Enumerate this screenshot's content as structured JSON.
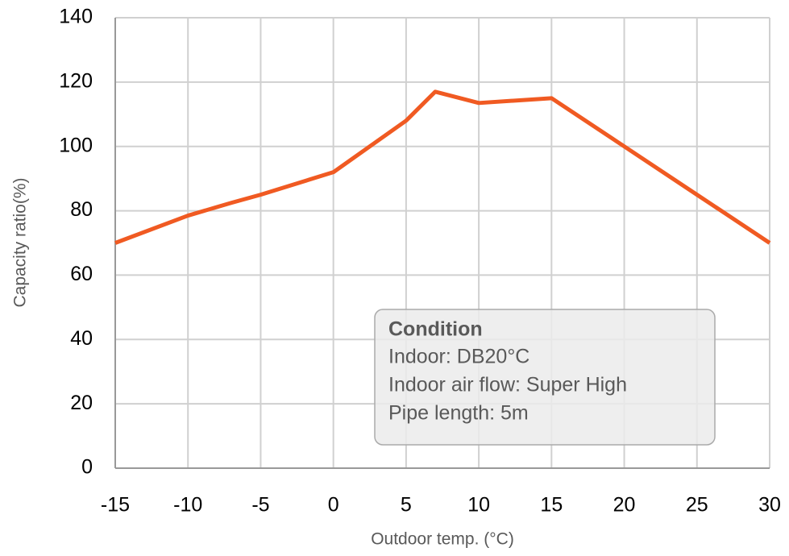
{
  "chart_data": {
    "type": "line",
    "xlabel": "Outdoor temp. (°C)",
    "ylabel": "Capacity ratio(%)",
    "x": [
      -15,
      -10,
      -7,
      -5,
      0,
      5,
      7,
      10,
      15,
      20,
      25,
      30
    ],
    "series": [
      {
        "name": "Capacity ratio",
        "color": "#f05a22",
        "values": [
          70,
          78.5,
          82.5,
          85,
          92,
          108,
          117,
          113.5,
          115,
          100,
          85,
          70
        ]
      }
    ],
    "xlim": [
      -15,
      30
    ],
    "xticks": [
      -15,
      -10,
      -5,
      0,
      5,
      10,
      15,
      20,
      25,
      30
    ],
    "ylim": [
      0,
      140
    ],
    "yticks": [
      0,
      20,
      40,
      60,
      80,
      100,
      120,
      140
    ],
    "grid": true,
    "annotation": {
      "title": "Condition",
      "lines": [
        "Indoor: DB20°C",
        "Indoor air flow: Super High",
        "Pipe length: 5m"
      ]
    }
  }
}
